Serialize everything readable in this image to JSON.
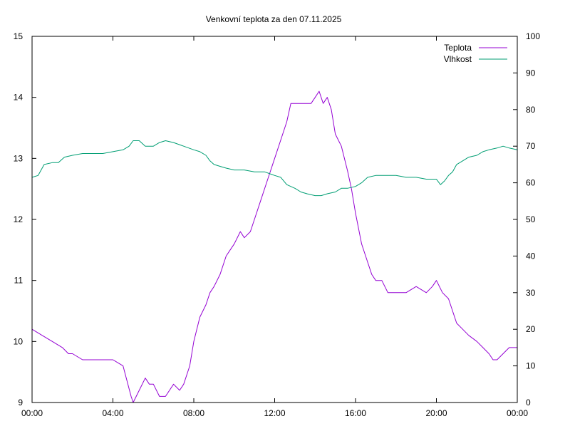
{
  "chart_data": {
    "type": "line",
    "title": "Venkovní teplota za den 07.11.2025",
    "xlabel": "",
    "ylabel": "",
    "y2label": "",
    "x_ticks": [
      "00:00",
      "04:00",
      "08:00",
      "12:00",
      "16:00",
      "20:00",
      "00:00"
    ],
    "xlim_hours": [
      0,
      24
    ],
    "ylim": [
      9,
      15
    ],
    "y_ticks": [
      9,
      10,
      11,
      12,
      13,
      14,
      15
    ],
    "y2lim": [
      0,
      100
    ],
    "y2_ticks": [
      0,
      10,
      20,
      30,
      40,
      50,
      60,
      70,
      80,
      90,
      100
    ],
    "grid": false,
    "legend_position": "top-right",
    "series": [
      {
        "name": "Teplota",
        "axis": "left",
        "color": "#9400d3",
        "x_hours": [
          0,
          0.5,
          1.0,
          1.5,
          1.8,
          2.0,
          2.5,
          3.0,
          3.5,
          4.0,
          4.5,
          4.9,
          5.0,
          5.3,
          5.6,
          5.8,
          6.0,
          6.3,
          6.6,
          6.8,
          7.0,
          7.3,
          7.5,
          7.8,
          8.0,
          8.3,
          8.6,
          8.8,
          9.0,
          9.3,
          9.6,
          9.8,
          10.0,
          10.3,
          10.5,
          10.8,
          11.0,
          11.3,
          11.6,
          11.8,
          12.0,
          12.3,
          12.6,
          12.8,
          13.0,
          13.3,
          13.6,
          13.8,
          14.0,
          14.2,
          14.4,
          14.6,
          14.8,
          15.0,
          15.3,
          15.6,
          15.8,
          16.0,
          16.3,
          16.6,
          16.8,
          17.0,
          17.3,
          17.6,
          18.0,
          18.5,
          19.0,
          19.5,
          19.8,
          20.0,
          20.3,
          20.6,
          20.8,
          21.0,
          21.3,
          21.6,
          22.0,
          22.3,
          22.6,
          22.8,
          23.0,
          23.3,
          23.6,
          24.0
        ],
        "values": [
          10.2,
          10.1,
          10.0,
          9.9,
          9.8,
          9.8,
          9.7,
          9.7,
          9.7,
          9.7,
          9.6,
          9.1,
          9.0,
          9.2,
          9.4,
          9.3,
          9.3,
          9.1,
          9.1,
          9.2,
          9.3,
          9.2,
          9.3,
          9.6,
          10.0,
          10.4,
          10.6,
          10.8,
          10.9,
          11.1,
          11.4,
          11.5,
          11.6,
          11.8,
          11.7,
          11.8,
          12.0,
          12.3,
          12.6,
          12.8,
          13.0,
          13.3,
          13.6,
          13.9,
          13.9,
          13.9,
          13.9,
          13.9,
          14.0,
          14.1,
          13.9,
          14.0,
          13.8,
          13.4,
          13.2,
          12.8,
          12.5,
          12.1,
          11.6,
          11.3,
          11.1,
          11.0,
          11.0,
          10.8,
          10.8,
          10.8,
          10.9,
          10.8,
          10.9,
          11.0,
          10.8,
          10.7,
          10.5,
          10.3,
          10.2,
          10.1,
          10.0,
          9.9,
          9.8,
          9.7,
          9.7,
          9.8,
          9.9,
          9.9
        ]
      },
      {
        "name": "Vlhkost",
        "axis": "right",
        "color": "#009e73",
        "x_hours": [
          0,
          0.3,
          0.6,
          1.0,
          1.3,
          1.6,
          2.0,
          2.5,
          3.0,
          3.5,
          4.0,
          4.5,
          4.8,
          5.0,
          5.3,
          5.6,
          6.0,
          6.3,
          6.6,
          7.0,
          7.5,
          8.0,
          8.3,
          8.6,
          8.8,
          9.0,
          9.3,
          9.6,
          10.0,
          10.5,
          11.0,
          11.5,
          12.0,
          12.3,
          12.6,
          13.0,
          13.3,
          13.6,
          14.0,
          14.3,
          14.6,
          15.0,
          15.3,
          15.6,
          16.0,
          16.3,
          16.6,
          17.0,
          17.5,
          18.0,
          18.5,
          19.0,
          19.5,
          20.0,
          20.2,
          20.4,
          20.6,
          20.8,
          21.0,
          21.3,
          21.6,
          22.0,
          22.3,
          22.6,
          23.0,
          23.3,
          23.6,
          24.0
        ],
        "values": [
          61.5,
          62.0,
          65.0,
          65.5,
          65.5,
          67.0,
          67.5,
          68.0,
          68.0,
          68.0,
          68.5,
          69.0,
          70.0,
          71.5,
          71.5,
          70.0,
          70.0,
          71.0,
          71.5,
          71.0,
          70.0,
          69.0,
          68.5,
          67.5,
          66.0,
          65.0,
          64.5,
          64.0,
          63.5,
          63.5,
          63.0,
          63.0,
          62.0,
          61.5,
          59.5,
          58.5,
          57.5,
          57.0,
          56.5,
          56.5,
          57.0,
          57.5,
          58.5,
          58.5,
          59.0,
          60.0,
          61.5,
          62.0,
          62.0,
          62.0,
          61.5,
          61.5,
          61.0,
          61.0,
          59.5,
          60.5,
          62.0,
          63.0,
          65.0,
          66.0,
          67.0,
          67.5,
          68.5,
          69.0,
          69.5,
          70.0,
          69.5,
          69.0
        ]
      }
    ]
  }
}
